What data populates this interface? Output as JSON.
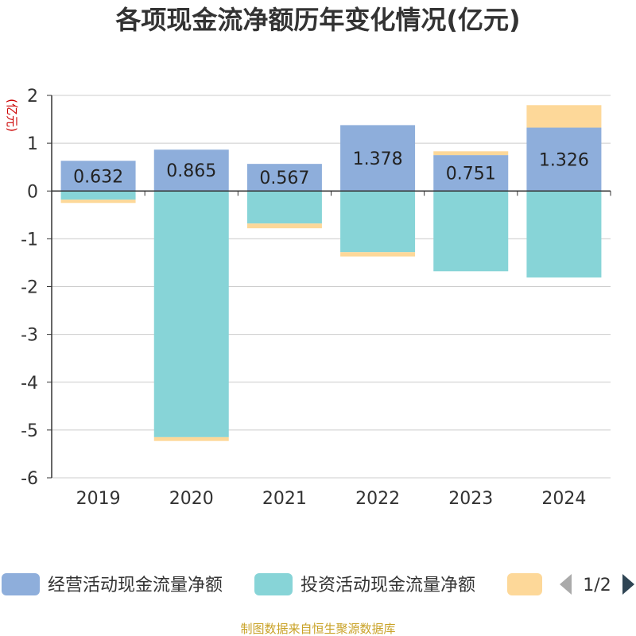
{
  "chart_data": {
    "type": "bar",
    "stacked": true,
    "title": "各项现金流净额历年变化情况(亿元)",
    "unit_label": "(亿元)",
    "categories": [
      "2019",
      "2020",
      "2021",
      "2022",
      "2023",
      "2024"
    ],
    "ylim": [
      -6,
      2
    ],
    "yticks": [
      2,
      1,
      0,
      -1,
      -2,
      -3,
      -4,
      -5,
      -6
    ],
    "grid": true,
    "legend_position": "bottom",
    "series": [
      {
        "name": "经营活动现金流量净额",
        "color": "#8eaedb",
        "values": [
          0.632,
          0.865,
          0.567,
          1.378,
          0.751,
          1.326
        ],
        "labels": [
          "0.632",
          "0.865",
          "0.567",
          "1.378",
          "0.751",
          "1.326"
        ]
      },
      {
        "name": "投资活动现金流量净额",
        "color": "#87d4d7",
        "values": [
          -0.18,
          -5.15,
          -0.68,
          -1.28,
          -1.68,
          -1.81
        ]
      },
      {
        "color": "#fdd899",
        "values": [
          -0.07,
          -0.08,
          -0.1,
          -0.09,
          0.08,
          0.47
        ]
      }
    ],
    "legend_page": "1/2",
    "source": "制图数据来自恒生聚源数据库"
  }
}
